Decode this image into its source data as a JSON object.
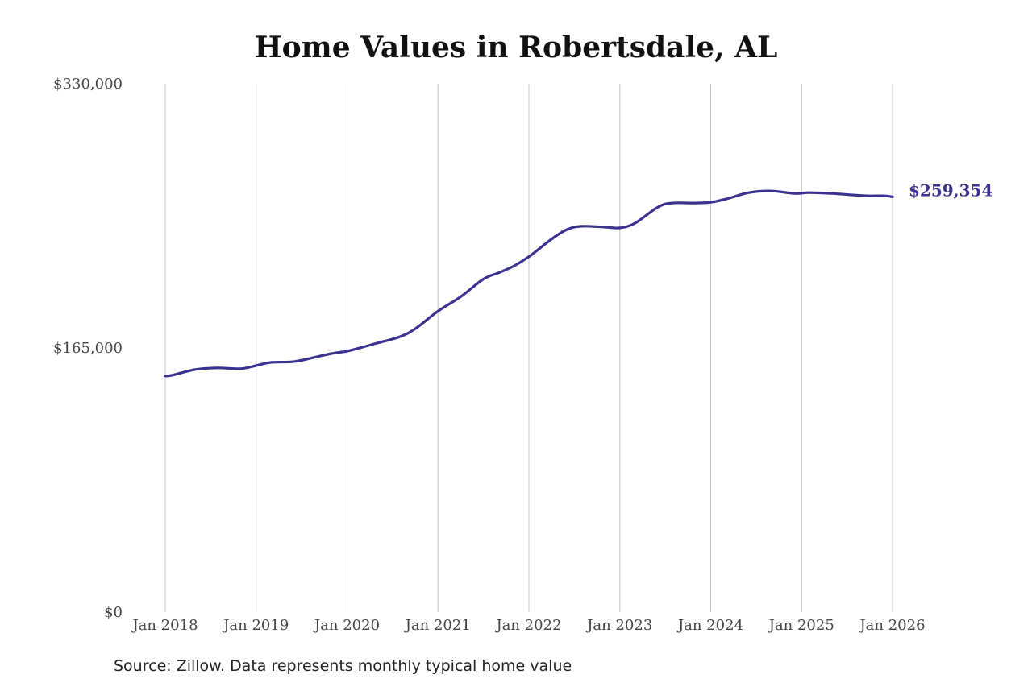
{
  "chart_data": {
    "type": "line",
    "title": "Home Values in Robertsdale, AL",
    "xlabel": "",
    "ylabel": "",
    "ylim": [
      0,
      330000
    ],
    "y_ticks": [
      "$0",
      "$165,000",
      "$330,000"
    ],
    "y_tick_values": [
      0,
      165000,
      330000
    ],
    "x_tick_labels": [
      "Jan 2018",
      "Jan 2019",
      "Jan 2020",
      "Jan 2021",
      "Jan 2022",
      "Jan 2023",
      "Jan 2024",
      "Jan 2025",
      "Jan 2026"
    ],
    "x_tick_values": [
      2018,
      2019,
      2020,
      2021,
      2022,
      2023,
      2024,
      2025,
      2026
    ],
    "grid": "vertical",
    "series": [
      {
        "color": "#3a3190",
        "x": [
          2018.0,
          2018.08,
          2018.33,
          2018.58,
          2018.83,
          2019.0,
          2019.17,
          2019.42,
          2019.67,
          2019.83,
          2020.0,
          2020.17,
          2020.33,
          2020.58,
          2020.75,
          2021.0,
          2021.25,
          2021.5,
          2021.67,
          2021.83,
          2022.0,
          2022.25,
          2022.42,
          2022.58,
          2022.83,
          2023.0,
          2023.17,
          2023.42,
          2023.58,
          2023.83,
          2024.0,
          2024.17,
          2024.42,
          2024.67,
          2024.92,
          2025.08,
          2025.33,
          2025.58,
          2025.75,
          2025.92,
          2026.0
        ],
        "y": [
          147500,
          148000,
          151500,
          152500,
          152000,
          154000,
          156000,
          156500,
          159500,
          161500,
          163000,
          165500,
          168000,
          172000,
          177000,
          188000,
          197000,
          208000,
          212000,
          216000,
          222000,
          233000,
          239000,
          241000,
          240500,
          240000,
          243000,
          253000,
          255500,
          255500,
          256000,
          258000,
          262000,
          263000,
          261500,
          262000,
          261500,
          260500,
          260000,
          260000,
          259354
        ]
      }
    ],
    "end_label": "$259,354"
  },
  "source": "Source: Zillow. Data represents monthly typical home value"
}
